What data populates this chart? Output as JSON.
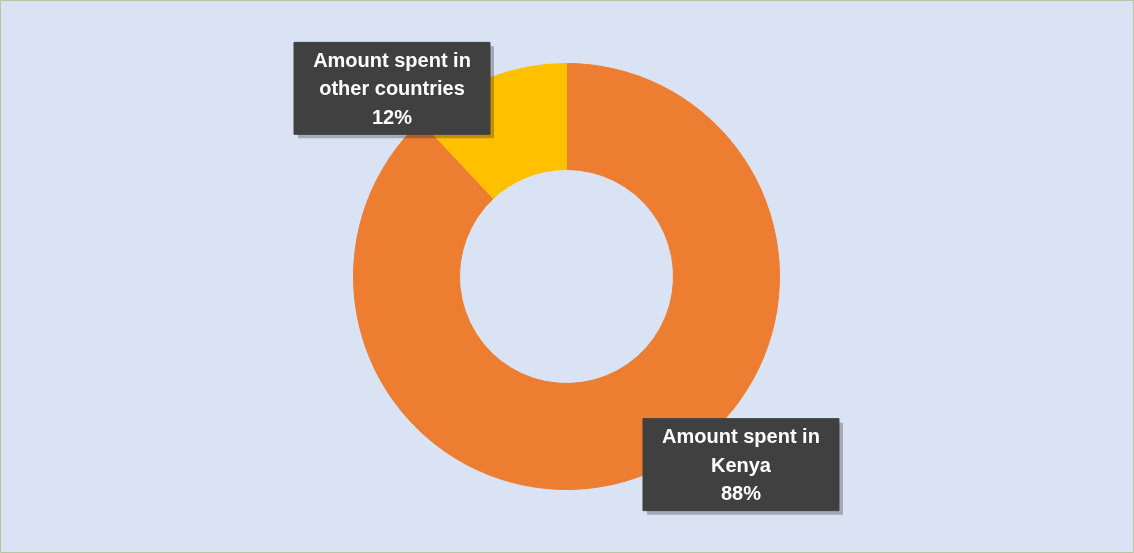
{
  "chart_data": {
    "type": "donut",
    "categories": [
      "Amount spent in Kenya",
      "Amount spent in other countries"
    ],
    "values": [
      88,
      12
    ],
    "colors": [
      "#ed7d31",
      "#ffc000"
    ],
    "value_labels": [
      "88%",
      "12%"
    ]
  }
}
